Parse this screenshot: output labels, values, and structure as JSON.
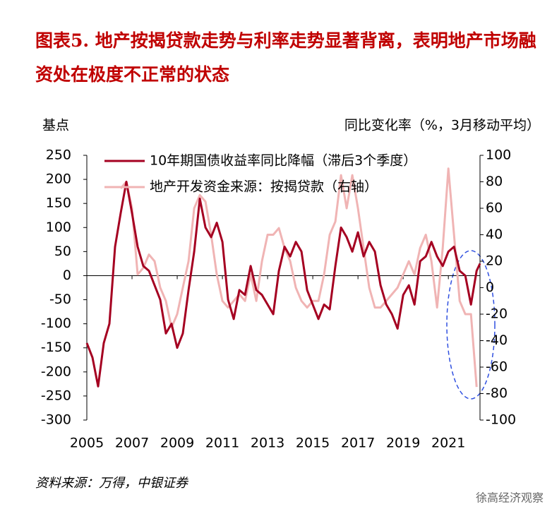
{
  "chart_data": {
    "type": "line",
    "title": "图表5. 地产按揭贷款走势与利率走势显著背离，表明地产市场融资处在极度不正常的状态",
    "y_label": "基点",
    "y2_label": "同比变化率（%，3月移动平均）",
    "source": "资料来源：万得，中银证券",
    "watermark": "徐高经济观察",
    "x": [
      2005,
      2005.25,
      2005.5,
      2005.75,
      2006,
      2006.25,
      2006.5,
      2006.75,
      2007,
      2007.25,
      2007.5,
      2007.75,
      2008,
      2008.25,
      2008.5,
      2008.75,
      2009,
      2009.25,
      2009.5,
      2009.75,
      2010,
      2010.25,
      2010.5,
      2010.75,
      2011,
      2011.25,
      2011.5,
      2011.75,
      2012,
      2012.25,
      2012.5,
      2012.75,
      2013,
      2013.25,
      2013.5,
      2013.75,
      2014,
      2014.25,
      2014.5,
      2014.75,
      2015,
      2015.25,
      2015.5,
      2015.75,
      2016,
      2016.25,
      2016.5,
      2016.75,
      2017,
      2017.25,
      2017.5,
      2017.75,
      2018,
      2018.25,
      2018.5,
      2018.75,
      2019,
      2019.25,
      2019.5,
      2019.75,
      2020,
      2020.25,
      2020.5,
      2020.75,
      2021,
      2021.25,
      2021.5,
      2021.75,
      2022,
      2022.25,
      2022.4
    ],
    "series": [
      {
        "name": "10年期国债收益率同比降幅（滞后3个季度）",
        "color": "#a50021",
        "values": [
          -140,
          -170,
          -230,
          -140,
          -100,
          60,
          130,
          195,
          130,
          60,
          20,
          10,
          -20,
          -50,
          -120,
          -100,
          -150,
          -120,
          -30,
          50,
          160,
          100,
          80,
          110,
          70,
          -50,
          -90,
          -30,
          -40,
          20,
          -30,
          -40,
          -60,
          -80,
          10,
          60,
          40,
          70,
          50,
          -30,
          -60,
          -90,
          -60,
          -70,
          20,
          100,
          80,
          50,
          90,
          40,
          70,
          50,
          -20,
          -60,
          -80,
          -110,
          -40,
          -20,
          -60,
          30,
          40,
          70,
          40,
          20,
          50,
          60,
          10,
          0,
          -60,
          10,
          25
        ]
      },
      {
        "name": "地产开发资金来源：按揭贷款（右轴）",
        "color": "#f0b4b4",
        "axis": "y2",
        "values": [
          null,
          null,
          null,
          null,
          null,
          null,
          75,
          80,
          60,
          10,
          15,
          25,
          20,
          0,
          -10,
          -30,
          -20,
          0,
          20,
          60,
          70,
          65,
          40,
          10,
          -10,
          -15,
          -10,
          -5,
          -10,
          10,
          -10,
          20,
          40,
          40,
          45,
          30,
          20,
          0,
          -10,
          -15,
          -10,
          -10,
          10,
          40,
          50,
          85,
          60,
          85,
          60,
          30,
          0,
          -15,
          -15,
          -10,
          -5,
          0,
          10,
          20,
          10,
          30,
          40,
          20,
          -15,
          30,
          90,
          40,
          -10,
          -20,
          -20,
          -75,
          null
        ]
      }
    ],
    "xlim": [
      2005,
      2022.4
    ],
    "xticks": [
      2005,
      2007,
      2009,
      2011,
      2013,
      2015,
      2017,
      2019,
      2021
    ],
    "ylim": [
      -300,
      250
    ],
    "yticks": [
      -300,
      -250,
      -200,
      -150,
      -100,
      -50,
      0,
      50,
      100,
      150,
      200,
      250
    ],
    "y2lim": [
      -100,
      100
    ],
    "y2ticks": [
      -100,
      -80,
      -60,
      -40,
      -20,
      0,
      20,
      40,
      60,
      80,
      100
    ],
    "legend": "top"
  }
}
